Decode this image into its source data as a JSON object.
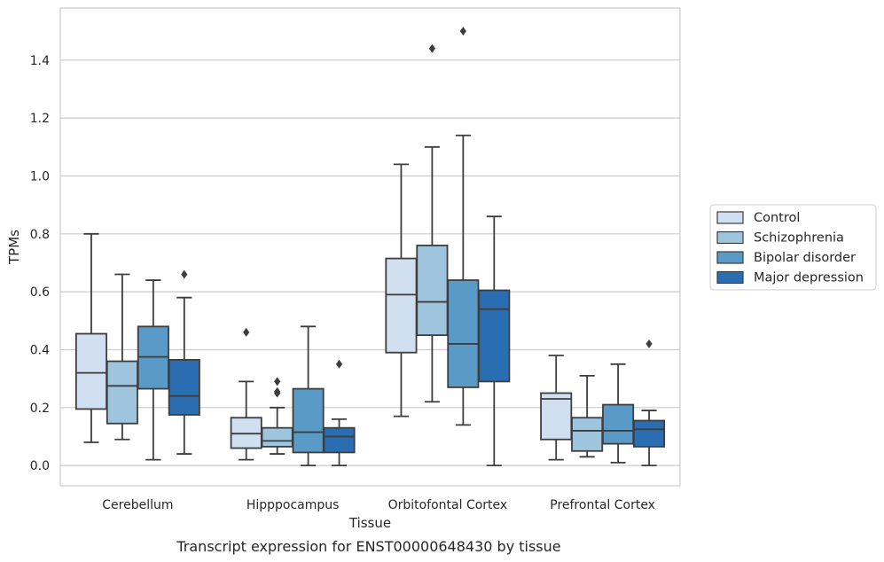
{
  "chart_data": {
    "type": "boxplot",
    "title": "",
    "caption": "Transcript expression for ENST00000648430 by tissue",
    "xlabel": "Tissue",
    "ylabel": "TPMs",
    "ylim": [
      -0.07,
      1.58
    ],
    "yticks": [
      0.0,
      0.2,
      0.4,
      0.6,
      0.8,
      1.0,
      1.2,
      1.4
    ],
    "ytick_labels": [
      "0.0",
      "0.2",
      "0.4",
      "0.6",
      "0.8",
      "1.0",
      "1.2",
      "1.4"
    ],
    "grid": "horizontal",
    "legend_position": "right",
    "categories": [
      "Cerebellum",
      "Hipppocampus",
      "Orbitofontal Cortex",
      "Prefrontal Cortex"
    ],
    "series": [
      {
        "name": "Control",
        "color": "#d0e0f0",
        "boxes": [
          {
            "whisker_low": 0.08,
            "q1": 0.195,
            "median": 0.32,
            "q3": 0.455,
            "whisker_high": 0.8,
            "outliers": []
          },
          {
            "whisker_low": 0.02,
            "q1": 0.06,
            "median": 0.11,
            "q3": 0.165,
            "whisker_high": 0.29,
            "outliers": [
              0.46
            ]
          },
          {
            "whisker_low": 0.17,
            "q1": 0.39,
            "median": 0.59,
            "q3": 0.715,
            "whisker_high": 1.04,
            "outliers": []
          },
          {
            "whisker_low": 0.02,
            "q1": 0.09,
            "median": 0.23,
            "q3": 0.25,
            "whisker_high": 0.38,
            "outliers": []
          }
        ]
      },
      {
        "name": "Schizophrenia",
        "color": "#9fc5de",
        "boxes": [
          {
            "whisker_low": 0.09,
            "q1": 0.145,
            "median": 0.275,
            "q3": 0.36,
            "whisker_high": 0.66,
            "outliers": []
          },
          {
            "whisker_low": 0.04,
            "q1": 0.065,
            "median": 0.085,
            "q3": 0.13,
            "whisker_high": 0.2,
            "outliers": [
              0.25,
              0.255,
              0.29
            ]
          },
          {
            "whisker_low": 0.22,
            "q1": 0.45,
            "median": 0.565,
            "q3": 0.76,
            "whisker_high": 1.1,
            "outliers": [
              1.44
            ]
          },
          {
            "whisker_low": 0.03,
            "q1": 0.05,
            "median": 0.12,
            "q3": 0.165,
            "whisker_high": 0.31,
            "outliers": []
          }
        ]
      },
      {
        "name": "Bipolar disorder",
        "color": "#5a9ac6",
        "boxes": [
          {
            "whisker_low": 0.02,
            "q1": 0.265,
            "median": 0.375,
            "q3": 0.48,
            "whisker_high": 0.64,
            "outliers": []
          },
          {
            "whisker_low": 0.0,
            "q1": 0.045,
            "median": 0.115,
            "q3": 0.265,
            "whisker_high": 0.48,
            "outliers": []
          },
          {
            "whisker_low": 0.14,
            "q1": 0.27,
            "median": 0.42,
            "q3": 0.64,
            "whisker_high": 1.14,
            "outliers": [
              1.5
            ]
          },
          {
            "whisker_low": 0.01,
            "q1": 0.075,
            "median": 0.12,
            "q3": 0.21,
            "whisker_high": 0.35,
            "outliers": []
          }
        ]
      },
      {
        "name": "Major depression",
        "color": "#2a6db0",
        "boxes": [
          {
            "whisker_low": 0.04,
            "q1": 0.175,
            "median": 0.24,
            "q3": 0.365,
            "whisker_high": 0.58,
            "outliers": [
              0.66
            ]
          },
          {
            "whisker_low": 0.0,
            "q1": 0.045,
            "median": 0.1,
            "q3": 0.13,
            "whisker_high": 0.16,
            "outliers": [
              0.35
            ]
          },
          {
            "whisker_low": 0.0,
            "q1": 0.29,
            "median": 0.54,
            "q3": 0.605,
            "whisker_high": 0.86,
            "outliers": []
          },
          {
            "whisker_low": 0.0,
            "q1": 0.065,
            "median": 0.125,
            "q3": 0.155,
            "whisker_high": 0.19,
            "outliers": [
              0.42
            ]
          }
        ]
      }
    ]
  }
}
